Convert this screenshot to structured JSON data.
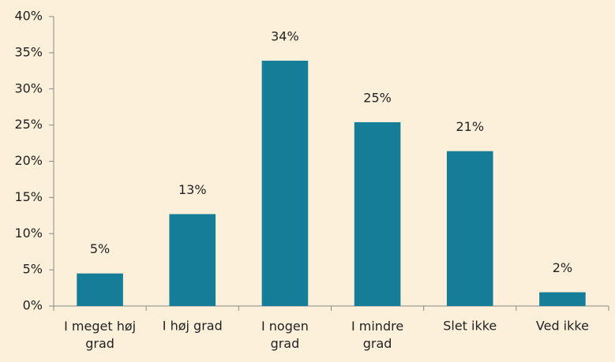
{
  "chart_data": {
    "type": "bar",
    "categories": [
      "I meget høj grad",
      "I høj grad",
      "I nogen grad",
      "I mindre grad",
      "Slet ikke",
      "Ved ikke"
    ],
    "values": [
      4.5,
      12.7,
      33.9,
      25.4,
      21.4,
      1.9
    ],
    "value_labels": [
      "5%",
      "13%",
      "34%",
      "25%",
      "21%",
      "2%"
    ],
    "color": "#157d97",
    "ylim": [
      0,
      40
    ],
    "yticks": [
      {
        "value": 0,
        "label": "0%"
      },
      {
        "value": 5,
        "label": "5%"
      },
      {
        "value": 10,
        "label": "10%"
      },
      {
        "value": 15,
        "label": "15%"
      },
      {
        "value": 20,
        "label": "20%"
      },
      {
        "value": 25,
        "label": "25%"
      },
      {
        "value": 30,
        "label": "30%"
      },
      {
        "value": 35,
        "label": "35%"
      },
      {
        "value": 40,
        "label": "40%"
      }
    ],
    "grid": false
  }
}
